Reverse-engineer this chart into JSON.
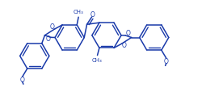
{
  "bg_color": "#ffffff",
  "lc": "#1a3aaa",
  "lw": 1.1,
  "dbo": 0.012,
  "figsize": [
    2.76,
    1.34
  ],
  "dpi": 100,
  "xlim": [
    0.0,
    1.0
  ],
  "ylim": [
    0.0,
    0.55
  ]
}
